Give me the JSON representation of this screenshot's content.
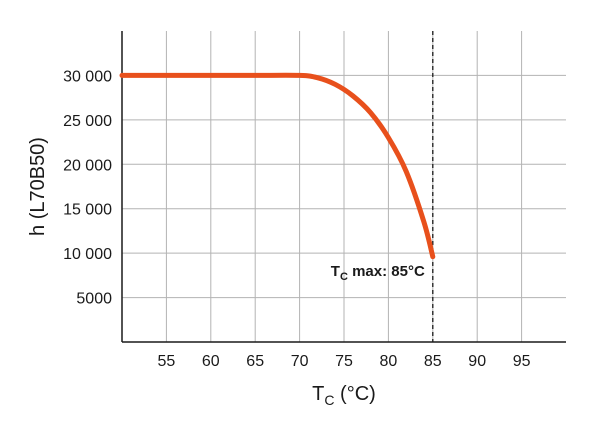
{
  "chart_data": {
    "type": "line",
    "title": "",
    "ylabel": "h (L70B50)",
    "xlabel_main": "T",
    "xlabel_sub": "C",
    "xlabel_unit": " (°C)",
    "xlim": [
      50,
      100
    ],
    "ylim": [
      0,
      35000
    ],
    "x_ticks": [
      55,
      60,
      65,
      70,
      75,
      80,
      85,
      90,
      95
    ],
    "y_ticks": [
      5000,
      10000,
      15000,
      20000,
      25000,
      30000
    ],
    "y_tick_labels": [
      "5000",
      "10 000",
      "15 000",
      "20 000",
      "25 000",
      "30 000"
    ],
    "grid": true,
    "series": [
      {
        "color": "#e8501c",
        "x": [
          50,
          55,
          60,
          65,
          70,
          72,
          74,
          76,
          78,
          80,
          82,
          84,
          85
        ],
        "y": [
          30000,
          30000,
          30000,
          30000,
          30000,
          29750,
          29000,
          27700,
          25800,
          23000,
          19200,
          13500,
          9600
        ]
      }
    ],
    "annotation": {
      "x": 85,
      "main": "T",
      "sub": "C",
      "text": " max: 85°C"
    }
  }
}
